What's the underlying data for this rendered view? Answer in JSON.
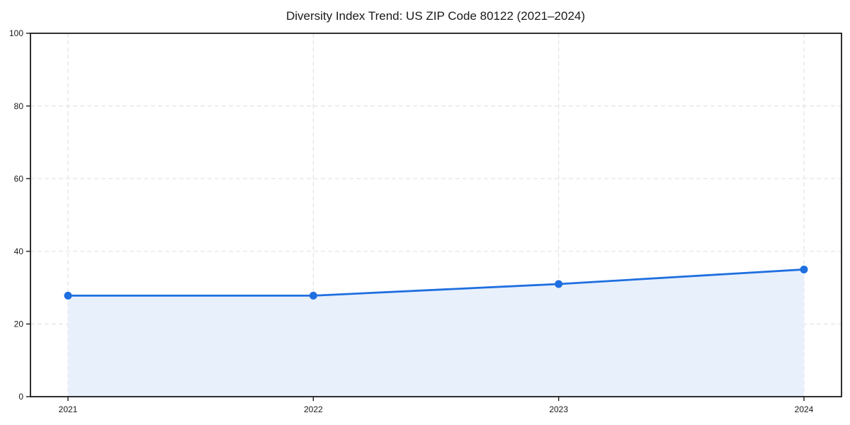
{
  "chart_data": {
    "type": "area",
    "title": "Diversity Index Trend: US ZIP Code 80122 (2021–2024)",
    "categories": [
      "2021",
      "2022",
      "2023",
      "2024"
    ],
    "series": [
      {
        "name": "Diversity Index",
        "values": [
          27.8,
          27.8,
          31.0,
          35.0
        ]
      }
    ],
    "xlabel": "",
    "ylabel": "",
    "ylim": [
      0,
      100
    ],
    "yticks": [
      0,
      20,
      40,
      60,
      80,
      100
    ],
    "grid": "on",
    "legend_position": "none",
    "line_color": "#1f6fe0",
    "fill_color": "#e8f0fc",
    "marker_color": "#1f6fe0",
    "grid_color": "#e3e3e3",
    "axis_color": "#1a1a1a"
  }
}
